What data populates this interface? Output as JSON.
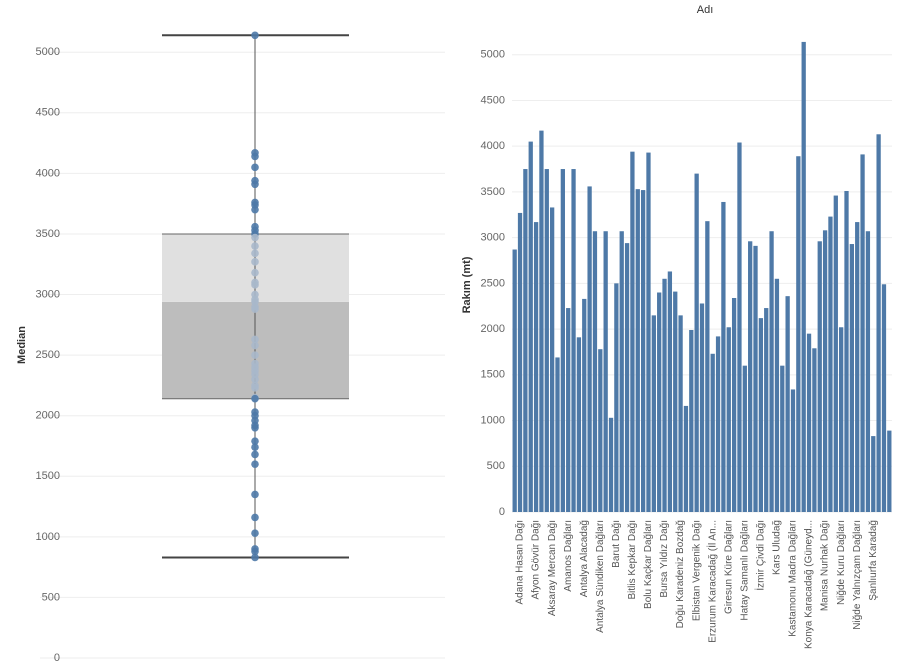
{
  "chart_data": [
    {
      "type": "box",
      "y_label": "Median",
      "ylim": [
        0,
        5200
      ],
      "yticks": [
        0,
        500,
        1000,
        1500,
        2000,
        2500,
        3000,
        3500,
        4000,
        4500,
        5000
      ],
      "grid": true,
      "whisker_low": 830,
      "q1": 2140,
      "median": 2940,
      "q3": 3500,
      "whisker_high": 5140,
      "box_colors": [
        "#bdbdbd",
        "#e0e0e0"
      ],
      "point_color": "#4e79a7",
      "point_color_inner": "#a9b8cb",
      "points": [
        5140,
        4170,
        4140,
        4050,
        3940,
        3910,
        3760,
        3740,
        3700,
        3560,
        3530,
        3500,
        3470,
        3400,
        3340,
        3270,
        3180,
        3100,
        3080,
        3000,
        2960,
        2940,
        2900,
        2880,
        2630,
        2580,
        2500,
        2430,
        2400,
        2370,
        2340,
        2300,
        2250,
        2230,
        2150,
        2140,
        2030,
        2000,
        1960,
        1920,
        1900,
        1790,
        1740,
        1680,
        1600,
        1350,
        1160,
        1030,
        900,
        880,
        830
      ]
    },
    {
      "type": "bar",
      "title": "Adı",
      "y_label": "Rakım (mt)",
      "color": "#4e79a7",
      "ylim": [
        0,
        5150
      ],
      "yticks": [
        0,
        500,
        1000,
        1500,
        2000,
        2500,
        3000,
        3500,
        4000,
        4500,
        5000
      ],
      "grid": true,
      "categories": [
        null,
        "Adana Hasan Dağı",
        null,
        null,
        "Afyon Gövür Dağı",
        null,
        null,
        "Aksaray Mercan Dağı",
        null,
        null,
        "Amanos Dağları",
        null,
        null,
        "Antalya Alacadağ",
        null,
        null,
        "Antalya Sündiken Dağları",
        null,
        null,
        "Barut Dağı",
        null,
        null,
        "Bitlis Kepkar Dağı",
        null,
        null,
        "Bolu Kaçkar Dağları",
        null,
        null,
        "Bursa Yıldız Dağı",
        null,
        null,
        "Doğu Karadeniz Bozdağ",
        null,
        null,
        "Elbistan Vergenik Dağı",
        null,
        null,
        "Erzurum Karacadağ (İl An...",
        null,
        null,
        "Giresun Küre Dağları",
        null,
        null,
        "Hatay Samanlı Dağları",
        null,
        null,
        "İzmir Çivdi Dağı",
        null,
        null,
        "Kars Uludağ",
        null,
        null,
        "Kastamonu Madra Dağları",
        null,
        null,
        "Konya Karacadağ (Güneyd...",
        null,
        null,
        "Manisa Nurhak Dağı",
        null,
        null,
        "Niğde Kuru Dağları",
        null,
        null,
        "Niğde Yalnızçam Dağları",
        null,
        null,
        "Şanlıurfa Karadağ",
        null,
        null,
        null
      ],
      "values": [
        2870,
        3270,
        3750,
        4050,
        3170,
        4170,
        3750,
        3330,
        1690,
        3750,
        2230,
        3750,
        1910,
        2330,
        3560,
        3070,
        1780,
        3070,
        1030,
        2500,
        3070,
        2940,
        3940,
        3530,
        3520,
        3930,
        2150,
        2400,
        2550,
        2630,
        2410,
        2150,
        1160,
        1990,
        3700,
        2280,
        3180,
        1730,
        1920,
        3390,
        2020,
        2340,
        4040,
        1600,
        2960,
        2910,
        2120,
        2230,
        3070,
        2550,
        1600,
        2360,
        1340,
        3890,
        5140,
        1950,
        1790,
        2960,
        3080,
        3230,
        3460,
        2020,
        3510,
        2930,
        3170,
        3910,
        3070,
        830,
        4130,
        2490,
        890
      ]
    }
  ]
}
